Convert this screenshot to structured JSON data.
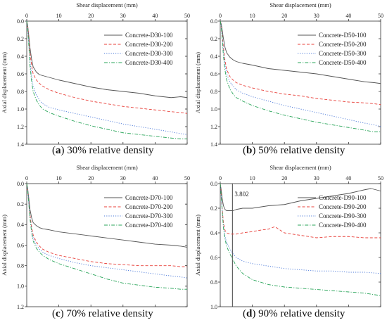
{
  "chart_data": [
    {
      "panel_letter": "a",
      "caption": "30% relative density",
      "type": "line",
      "xlabel": "Shear displacement (mm)",
      "ylabel": "Axial displacement (mm)",
      "xlim": [
        0,
        50
      ],
      "ylim": [
        0,
        1.4
      ],
      "y_inverted": true,
      "x_ticks": [
        0,
        10,
        20,
        30,
        40,
        50
      ],
      "y_ticks": [
        0.0,
        0.2,
        0.4,
        0.6,
        0.8,
        1.0,
        1.2,
        1.4
      ],
      "x_axis_position": "top",
      "grid": false,
      "legend_position": "top-right",
      "series": [
        {
          "name": "Concrete-D30-100",
          "color": "#555555",
          "dash": "solid",
          "x": [
            0,
            0.3,
            0.6,
            1,
            1.5,
            2,
            3,
            4,
            5,
            7,
            10,
            15,
            20,
            25,
            30,
            35,
            40,
            45,
            48,
            50
          ],
          "y": [
            0,
            0.05,
            0.15,
            0.3,
            0.43,
            0.52,
            0.58,
            0.61,
            0.62,
            0.64,
            0.67,
            0.71,
            0.75,
            0.78,
            0.8,
            0.82,
            0.85,
            0.87,
            0.86,
            0.87
          ]
        },
        {
          "name": "Concrete-D30-200",
          "color": "#e8403a",
          "dash": "dashed",
          "x": [
            0,
            0.3,
            0.6,
            1,
            1.5,
            2,
            3,
            4,
            5,
            7,
            10,
            15,
            20,
            25,
            30,
            35,
            40,
            45,
            48,
            50
          ],
          "y": [
            0,
            0.05,
            0.18,
            0.36,
            0.5,
            0.6,
            0.67,
            0.71,
            0.74,
            0.78,
            0.82,
            0.87,
            0.91,
            0.94,
            0.97,
            0.99,
            1.01,
            1.03,
            1.04,
            1.05
          ]
        },
        {
          "name": "Concrete-D30-300",
          "color": "#4a78d8",
          "dash": "dotted",
          "x": [
            0,
            0.3,
            0.6,
            1,
            1.5,
            2,
            3,
            4,
            5,
            7,
            10,
            15,
            20,
            25,
            30,
            35,
            40,
            45,
            48,
            50
          ],
          "y": [
            0,
            0.07,
            0.22,
            0.45,
            0.62,
            0.74,
            0.84,
            0.9,
            0.94,
            0.98,
            1.01,
            1.05,
            1.09,
            1.13,
            1.17,
            1.2,
            1.23,
            1.26,
            1.28,
            1.29
          ]
        },
        {
          "name": "Concrete-D30-400",
          "color": "#2aa55a",
          "dash": "dashdot",
          "x": [
            0,
            0.3,
            0.6,
            1,
            1.5,
            2,
            3,
            4,
            5,
            7,
            10,
            15,
            20,
            25,
            30,
            35,
            40,
            45,
            48,
            50
          ],
          "y": [
            0,
            0.08,
            0.25,
            0.5,
            0.68,
            0.8,
            0.9,
            0.96,
            1.0,
            1.04,
            1.08,
            1.14,
            1.19,
            1.23,
            1.27,
            1.29,
            1.31,
            1.33,
            1.34,
            1.34
          ]
        }
      ]
    },
    {
      "panel_letter": "b",
      "caption": "50% relative density",
      "type": "line",
      "xlabel": "Shear displacement (mm)",
      "ylabel": "Axial displacement (mm)",
      "xlim": [
        0,
        50
      ],
      "ylim": [
        0,
        1.4
      ],
      "y_inverted": true,
      "x_ticks": [
        0,
        10,
        20,
        30,
        40,
        50
      ],
      "y_ticks": [
        0.0,
        0.2,
        0.4,
        0.6,
        0.8,
        1.0,
        1.2,
        1.4
      ],
      "x_axis_position": "top",
      "grid": false,
      "legend_position": "top-right",
      "series": [
        {
          "name": "Concrete-D50-100",
          "color": "#555555",
          "dash": "solid",
          "x": [
            0,
            0.3,
            0.6,
            1,
            1.5,
            2,
            3,
            4,
            5,
            7,
            10,
            15,
            20,
            25,
            30,
            35,
            40,
            45,
            48,
            50
          ],
          "y": [
            0,
            0.03,
            0.1,
            0.2,
            0.3,
            0.36,
            0.41,
            0.44,
            0.46,
            0.48,
            0.5,
            0.54,
            0.56,
            0.58,
            0.6,
            0.63,
            0.66,
            0.69,
            0.7,
            0.71
          ]
        },
        {
          "name": "Concrete-D50-200",
          "color": "#e8403a",
          "dash": "dashed",
          "x": [
            0,
            0.3,
            0.6,
            1,
            1.5,
            2,
            3,
            4,
            5,
            7,
            10,
            15,
            20,
            25,
            30,
            35,
            40,
            45,
            48,
            50
          ],
          "y": [
            0,
            0.04,
            0.15,
            0.3,
            0.45,
            0.55,
            0.63,
            0.67,
            0.7,
            0.73,
            0.76,
            0.8,
            0.83,
            0.85,
            0.88,
            0.9,
            0.92,
            0.93,
            0.94,
            0.95
          ]
        },
        {
          "name": "Concrete-D50-300",
          "color": "#4a78d8",
          "dash": "dotted",
          "x": [
            0,
            0.3,
            0.6,
            1,
            1.5,
            2,
            3,
            4,
            5,
            7,
            10,
            15,
            20,
            25,
            30,
            35,
            40,
            45,
            48,
            50
          ],
          "y": [
            0,
            0.05,
            0.17,
            0.34,
            0.5,
            0.6,
            0.69,
            0.74,
            0.78,
            0.82,
            0.86,
            0.91,
            0.96,
            1.0,
            1.04,
            1.08,
            1.12,
            1.16,
            1.18,
            1.2
          ]
        },
        {
          "name": "Concrete-D50-400",
          "color": "#2aa55a",
          "dash": "dashdot",
          "x": [
            0,
            0.3,
            0.6,
            1,
            1.5,
            2,
            3,
            4,
            5,
            7,
            10,
            15,
            20,
            25,
            30,
            35,
            40,
            45,
            48,
            50
          ],
          "y": [
            0,
            0.06,
            0.2,
            0.4,
            0.56,
            0.67,
            0.77,
            0.83,
            0.87,
            0.91,
            0.96,
            1.02,
            1.07,
            1.11,
            1.15,
            1.18,
            1.21,
            1.24,
            1.26,
            1.26
          ]
        }
      ]
    },
    {
      "panel_letter": "c",
      "caption": "70% relative density",
      "type": "line",
      "xlabel": "Shear displacement (mm)",
      "ylabel": "Axial displacement (mm)",
      "xlim": [
        0,
        50
      ],
      "ylim": [
        0,
        1.2
      ],
      "y_inverted": true,
      "x_ticks": [
        0,
        10,
        20,
        30,
        40,
        50
      ],
      "y_ticks": [
        0.0,
        0.2,
        0.4,
        0.6,
        0.8,
        1.0,
        1.2
      ],
      "x_axis_position": "top",
      "grid": false,
      "legend_position": "top-right",
      "series": [
        {
          "name": "Concrete-D70-100",
          "color": "#555555",
          "dash": "solid",
          "x": [
            0,
            0.3,
            0.6,
            1,
            1.5,
            2,
            3,
            4,
            5,
            7,
            10,
            15,
            20,
            25,
            30,
            35,
            40,
            45,
            48,
            50
          ],
          "y": [
            0,
            0.05,
            0.13,
            0.25,
            0.33,
            0.38,
            0.41,
            0.43,
            0.44,
            0.45,
            0.47,
            0.49,
            0.51,
            0.53,
            0.55,
            0.57,
            0.59,
            0.6,
            0.61,
            0.62
          ]
        },
        {
          "name": "Concrete-D70-200",
          "color": "#e8403a",
          "dash": "dashed",
          "x": [
            0,
            0.3,
            0.6,
            1,
            1.5,
            2,
            3,
            4,
            5,
            7,
            10,
            15,
            20,
            25,
            30,
            35,
            40,
            45,
            48,
            50
          ],
          "y": [
            0,
            0.06,
            0.16,
            0.3,
            0.42,
            0.5,
            0.57,
            0.61,
            0.64,
            0.67,
            0.7,
            0.73,
            0.76,
            0.78,
            0.79,
            0.8,
            0.8,
            0.8,
            0.81,
            0.81
          ]
        },
        {
          "name": "Concrete-D70-300",
          "color": "#4a78d8",
          "dash": "dotted",
          "x": [
            0,
            0.3,
            0.6,
            1,
            1.5,
            2,
            3,
            4,
            5,
            7,
            10,
            15,
            20,
            25,
            30,
            35,
            40,
            45,
            48,
            50
          ],
          "y": [
            0,
            0.06,
            0.17,
            0.32,
            0.45,
            0.53,
            0.6,
            0.64,
            0.67,
            0.7,
            0.73,
            0.77,
            0.8,
            0.82,
            0.84,
            0.86,
            0.88,
            0.9,
            0.91,
            0.92
          ]
        },
        {
          "name": "Concrete-D70-400",
          "color": "#2aa55a",
          "dash": "dashdot",
          "x": [
            0,
            0.3,
            0.6,
            1,
            1.5,
            2,
            3,
            4,
            5,
            7,
            10,
            15,
            20,
            25,
            30,
            35,
            40,
            45,
            48,
            50
          ],
          "y": [
            0,
            0.06,
            0.18,
            0.34,
            0.47,
            0.56,
            0.63,
            0.67,
            0.7,
            0.74,
            0.78,
            0.83,
            0.88,
            0.93,
            0.97,
            0.99,
            1.01,
            1.02,
            1.03,
            1.03
          ]
        }
      ]
    },
    {
      "panel_letter": "d",
      "caption": "90% relative density",
      "type": "line",
      "xlabel": "Shear displacement (mm)",
      "ylabel": "Axial displacement (mm)",
      "xlim": [
        0,
        50
      ],
      "ylim": [
        0,
        1.0
      ],
      "y_inverted": true,
      "x_ticks": [
        0,
        10,
        20,
        30,
        40,
        50
      ],
      "y_ticks": [
        0.0,
        0.2,
        0.4,
        0.6,
        0.8,
        1.0
      ],
      "x_axis_position": "top",
      "grid": false,
      "legend_position": "top-right",
      "annotations": [
        {
          "text": "3.802",
          "x": 3.802,
          "type": "vertical-line"
        }
      ],
      "series": [
        {
          "name": "Concrete-D90-100",
          "color": "#555555",
          "dash": "solid",
          "x": [
            0,
            0.3,
            0.6,
            1,
            1.5,
            2,
            2.5,
            3,
            4,
            5,
            7,
            10,
            15,
            20,
            25,
            30,
            35,
            40,
            45,
            47,
            50
          ],
          "y": [
            0,
            0.05,
            0.12,
            0.18,
            0.21,
            0.22,
            0.22,
            0.22,
            0.22,
            0.21,
            0.2,
            0.2,
            0.18,
            0.17,
            0.14,
            0.12,
            0.1,
            0.08,
            0.05,
            0.04,
            0.06
          ]
        },
        {
          "name": "Concrete-D90-200",
          "color": "#e8403a",
          "dash": "dashed",
          "x": [
            0,
            0.3,
            0.6,
            1,
            1.5,
            2,
            3,
            4,
            5,
            7,
            10,
            12,
            15,
            17,
            20,
            25,
            30,
            35,
            40,
            45,
            50
          ],
          "y": [
            0,
            0.08,
            0.2,
            0.32,
            0.38,
            0.4,
            0.41,
            0.41,
            0.41,
            0.4,
            0.39,
            0.38,
            0.37,
            0.35,
            0.4,
            0.42,
            0.44,
            0.43,
            0.43,
            0.44,
            0.44
          ]
        },
        {
          "name": "Concrete-D90-300",
          "color": "#4a78d8",
          "dash": "dotted",
          "x": [
            0,
            0.3,
            0.6,
            1,
            1.5,
            2,
            3,
            4,
            5,
            7,
            10,
            15,
            20,
            25,
            30,
            35,
            40,
            45,
            50
          ],
          "y": [
            0,
            0.1,
            0.22,
            0.35,
            0.43,
            0.48,
            0.53,
            0.57,
            0.6,
            0.63,
            0.65,
            0.67,
            0.69,
            0.7,
            0.71,
            0.71,
            0.72,
            0.72,
            0.73
          ]
        },
        {
          "name": "Concrete-D90-400",
          "color": "#2aa55a",
          "dash": "dashdot",
          "x": [
            0,
            0.3,
            0.6,
            1,
            1.5,
            2,
            3,
            4,
            5,
            7,
            10,
            15,
            20,
            25,
            30,
            35,
            40,
            45,
            50
          ],
          "y": [
            0,
            0.1,
            0.22,
            0.36,
            0.45,
            0.51,
            0.57,
            0.62,
            0.67,
            0.73,
            0.78,
            0.82,
            0.84,
            0.85,
            0.86,
            0.87,
            0.88,
            0.89,
            0.91
          ]
        }
      ]
    }
  ]
}
